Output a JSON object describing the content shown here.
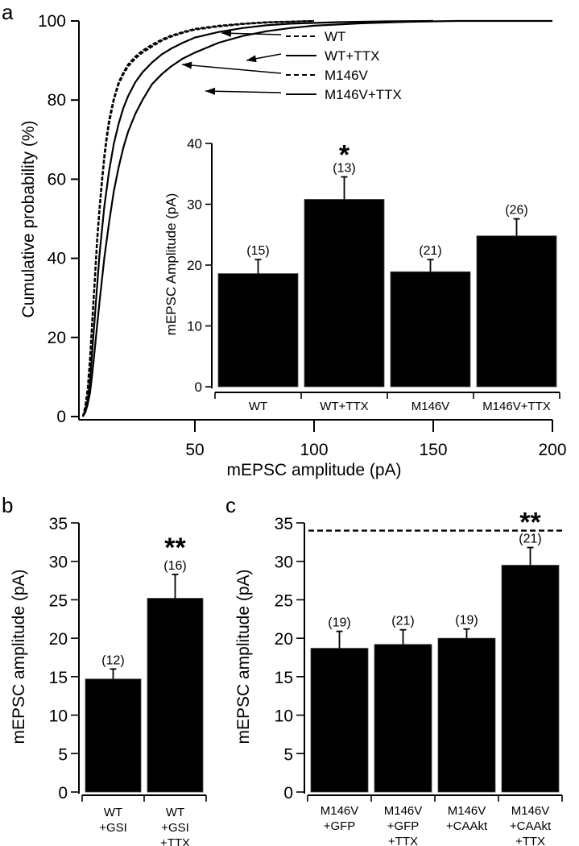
{
  "chart_data": [
    {
      "id": "a",
      "panel_label": "a",
      "type": "line",
      "subtype": "cumulative-distribution",
      "xlabel": "mEPSC amplitude (pA)",
      "ylabel": "Cumulative probability  (%)",
      "xlim": [
        0,
        200
      ],
      "ylim": [
        0,
        100
      ],
      "xticks": [
        50,
        100,
        150,
        200
      ],
      "yticks": [
        0,
        20,
        40,
        60,
        80,
        100
      ],
      "grid": false,
      "legend_position": "top-right",
      "series": [
        {
          "name": "WT",
          "style": "dashed",
          "x": [
            3,
            4,
            5,
            6,
            7,
            8,
            9,
            10,
            11,
            12,
            13,
            14,
            16,
            18,
            20,
            22,
            25,
            28,
            32,
            36,
            40,
            45,
            50,
            60,
            70,
            80,
            100
          ],
          "y": [
            0,
            2,
            6,
            14,
            24,
            34,
            44,
            52,
            59,
            65,
            70,
            74,
            80,
            84,
            86.5,
            88.5,
            90.5,
            92,
            93.5,
            95,
            96,
            97,
            97.8,
            98.6,
            99.2,
            99.6,
            100
          ]
        },
        {
          "name": "WT+TTX",
          "style": "solid",
          "x": [
            3,
            4,
            5,
            6,
            7,
            8,
            9,
            10,
            12,
            14,
            16,
            18,
            20,
            22,
            25,
            28,
            32,
            36,
            40,
            45,
            50,
            60,
            70,
            80,
            90,
            110,
            130,
            150
          ],
          "y": [
            0,
            1.5,
            4,
            9,
            17,
            25,
            33,
            41,
            53,
            62,
            69,
            74,
            78,
            81,
            84.5,
            87,
            89.5,
            91.5,
            93,
            94.5,
            95.8,
            97.2,
            98.2,
            98.9,
            99.3,
            99.7,
            99.9,
            100
          ]
        },
        {
          "name": "M146V",
          "style": "dashed",
          "x": [
            3,
            4,
            5,
            6,
            7,
            8,
            9,
            10,
            11,
            12,
            13,
            14,
            16,
            18,
            20,
            22,
            25,
            28,
            32,
            36,
            40,
            45,
            50,
            60,
            70,
            80,
            100
          ],
          "y": [
            0,
            2.5,
            7,
            15,
            25,
            35,
            45,
            53,
            60,
            66,
            71,
            75,
            80.5,
            84.5,
            87,
            89,
            91,
            92.5,
            94,
            95.3,
            96.3,
            97.2,
            98,
            98.8,
            99.3,
            99.7,
            100
          ]
        },
        {
          "name": "M146V+TTX",
          "style": "solid",
          "x": [
            3,
            4,
            5,
            6,
            7,
            8,
            9,
            10,
            12,
            14,
            16,
            18,
            20,
            22,
            25,
            28,
            32,
            36,
            40,
            45,
            50,
            60,
            70,
            80,
            90,
            100,
            120,
            140,
            160,
            200
          ],
          "y": [
            0,
            1,
            3,
            6,
            11,
            17,
            23,
            29,
            40,
            49,
            57,
            63,
            68,
            72,
            76.5,
            80,
            84,
            86.5,
            88.5,
            90.5,
            92,
            94.5,
            96.2,
            97.4,
            98.2,
            98.8,
            99.4,
            99.8,
            100,
            100
          ]
        }
      ],
      "legend": [
        {
          "label": "WT",
          "style": "dashed"
        },
        {
          "label": "WT+TTX",
          "style": "solid"
        },
        {
          "label": "M146V",
          "style": "dashed"
        },
        {
          "label": "M146V+TTX",
          "style": "solid"
        }
      ]
    },
    {
      "id": "a-inset",
      "type": "bar",
      "ylabel": "mEPSC Amplitude (pA)",
      "ylim": [
        0,
        40
      ],
      "yticks": [
        0,
        10,
        20,
        30,
        40
      ],
      "categories": [
        "WT",
        "WT+TTX",
        "M146V",
        "M146V+TTX"
      ],
      "values": [
        18.6,
        30.8,
        18.9,
        24.8
      ],
      "error_upper": [
        20.9,
        34.5,
        20.9,
        27.6
      ],
      "n_labels": [
        "(15)",
        "(13)",
        "(21)",
        "(26)"
      ],
      "significance": [
        "",
        "*",
        "",
        ""
      ]
    },
    {
      "id": "b",
      "panel_label": "b",
      "type": "bar",
      "ylabel": "mEPSC amplitude (pA)",
      "ylim": [
        0,
        35
      ],
      "yticks": [
        0,
        5,
        10,
        15,
        20,
        25,
        30,
        35
      ],
      "categories": [
        [
          "WT",
          "+GSI"
        ],
        [
          "WT",
          "+GSI",
          "+TTX"
        ]
      ],
      "values": [
        14.7,
        25.2
      ],
      "error_upper": [
        16.0,
        28.3
      ],
      "n_labels": [
        "(12)",
        "(16)"
      ],
      "significance": [
        "",
        "**"
      ]
    },
    {
      "id": "c",
      "panel_label": "c",
      "type": "bar",
      "ylabel": "mEPSC amplitude (pA)",
      "ylim": [
        0,
        35
      ],
      "yticks": [
        0,
        5,
        10,
        15,
        20,
        25,
        30,
        35
      ],
      "categories": [
        [
          "M146V",
          "+GFP"
        ],
        [
          "M146V",
          "+GFP",
          "+TTX"
        ],
        [
          "M146V",
          "+CAAkt"
        ],
        [
          "M146V",
          "+CAAkt",
          "+TTX"
        ]
      ],
      "values": [
        18.7,
        19.2,
        20.0,
        29.5
      ],
      "error_upper": [
        20.9,
        21.1,
        21.2,
        31.8
      ],
      "n_labels": [
        "(19)",
        "(21)",
        "(19)",
        "(21)"
      ],
      "significance": [
        "",
        "",
        "",
        "**"
      ],
      "reference_line": {
        "y": 34,
        "style": "dashed"
      }
    }
  ],
  "colors": {
    "ink": "#000000",
    "background": "#ffffff",
    "bar_fill": "#000000"
  }
}
